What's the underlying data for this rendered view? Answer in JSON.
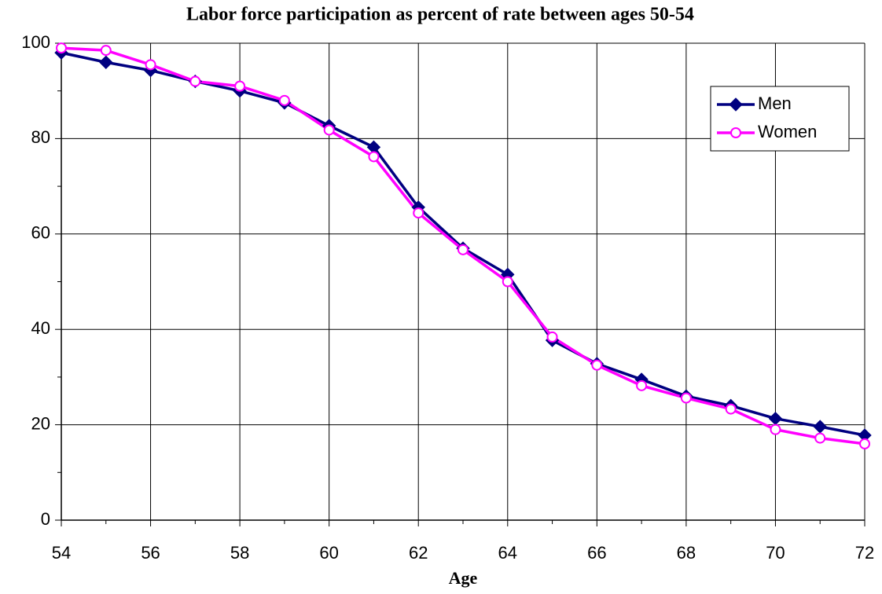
{
  "chart_data": {
    "type": "line",
    "title": "Labor force participation as percent of rate between ages 50-54",
    "x_label": "Age",
    "x": [
      54,
      55,
      56,
      57,
      58,
      59,
      60,
      61,
      62,
      63,
      64,
      65,
      66,
      67,
      68,
      69,
      70,
      71,
      72
    ],
    "series": [
      {
        "name": "Men",
        "color": "#000080",
        "marker": "diamond",
        "values": [
          98,
          96,
          94.3,
          92,
          90,
          87.5,
          82.7,
          78.2,
          65.6,
          57,
          51.5,
          37.7,
          32.8,
          29.5,
          26,
          24,
          21.3,
          19.6,
          17.8
        ]
      },
      {
        "name": "Women",
        "color": "#ff00ff",
        "marker": "circle",
        "values": [
          99,
          98.5,
          95.5,
          92,
          91,
          88,
          81.8,
          76.2,
          64.4,
          56.7,
          50,
          38.4,
          32.5,
          28.2,
          25.6,
          23.3,
          19,
          17.2,
          16
        ]
      }
    ],
    "xlim": [
      54,
      72
    ],
    "xticks": [
      54,
      56,
      58,
      60,
      62,
      64,
      66,
      68,
      70,
      72
    ],
    "ylim": [
      0,
      100
    ],
    "yticks": [
      0,
      20,
      40,
      60,
      80,
      100
    ],
    "grid": true,
    "legend": "upper right"
  }
}
